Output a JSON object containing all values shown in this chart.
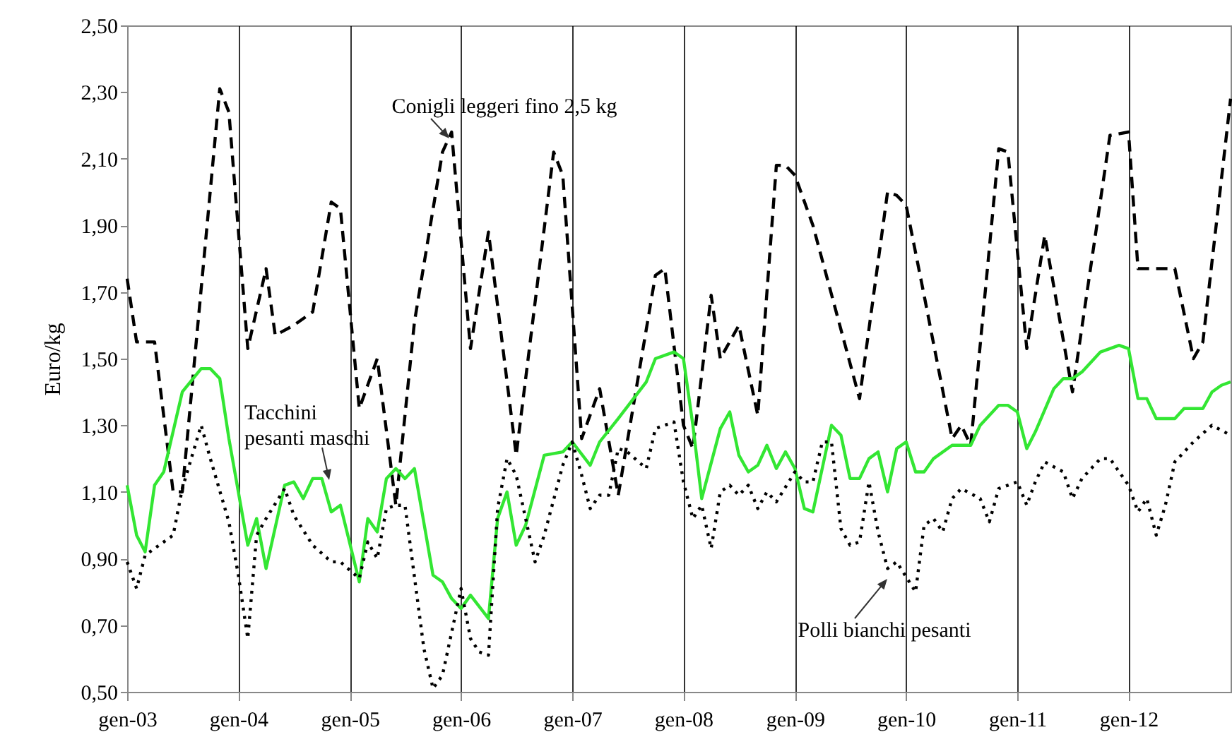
{
  "chart_data": {
    "type": "line",
    "ylabel": "Euro/kg",
    "xlim": [
      "2003-01",
      "2012-12"
    ],
    "xticks": [
      {
        "value": "2003-01",
        "label": "gen-03"
      },
      {
        "value": "2004-01",
        "label": "gen-04"
      },
      {
        "value": "2005-01",
        "label": "gen-05"
      },
      {
        "value": "2006-01",
        "label": "gen-06"
      },
      {
        "value": "2007-01",
        "label": "gen-07"
      },
      {
        "value": "2008-01",
        "label": "gen-08"
      },
      {
        "value": "2009-01",
        "label": "gen-09"
      },
      {
        "value": "2010-01",
        "label": "gen-10"
      },
      {
        "value": "2011-01",
        "label": "gen-11"
      },
      {
        "value": "2012-01",
        "label": "gen-12"
      }
    ],
    "ylim": [
      0.5,
      2.5
    ],
    "yticks": [
      {
        "value": 0.5,
        "label": "0,50"
      },
      {
        "value": 0.7,
        "label": "0,70"
      },
      {
        "value": 0.9,
        "label": "0,90"
      },
      {
        "value": 1.1,
        "label": "1,10"
      },
      {
        "value": 1.3,
        "label": "1,30"
      },
      {
        "value": 1.5,
        "label": "1,50"
      },
      {
        "value": 1.7,
        "label": "1,70"
      },
      {
        "value": 1.9,
        "label": "1,90"
      },
      {
        "value": 2.1,
        "label": "2,10"
      },
      {
        "value": 2.3,
        "label": "2,30"
      },
      {
        "value": 2.5,
        "label": "2,50"
      }
    ],
    "grid": "x",
    "series": [
      {
        "name": "Conigli leggeri fino 2,5 kg",
        "color": "#000000",
        "line_style": "dashed",
        "x": [
          "2003-01",
          "2003-02",
          "2003-04",
          "2003-06",
          "2003-07",
          "2003-11",
          "2003-12",
          "2004-02",
          "2004-04",
          "2004-05",
          "2004-07",
          "2004-09",
          "2004-11",
          "2004-12",
          "2005-02",
          "2005-04",
          "2005-06",
          "2005-08",
          "2005-11",
          "2005-12",
          "2006-02",
          "2006-04",
          "2006-07",
          "2006-11",
          "2006-12",
          "2007-02",
          "2007-04",
          "2007-06",
          "2007-10",
          "2007-11",
          "2008-01",
          "2008-02",
          "2008-04",
          "2008-05",
          "2008-07",
          "2008-09",
          "2008-11",
          "2008-12",
          "2009-01",
          "2009-03",
          "2009-08",
          "2009-11",
          "2009-12",
          "2010-01",
          "2010-03",
          "2010-06",
          "2010-07",
          "2010-08",
          "2010-11",
          "2010-12",
          "2011-02",
          "2011-04",
          "2011-07",
          "2011-11",
          "2012-01",
          "2012-02",
          "2012-04",
          "2012-06",
          "2012-08",
          "2012-09",
          "2012-12"
        ],
        "values": [
          1.74,
          1.55,
          1.55,
          1.1,
          1.1,
          2.31,
          2.24,
          1.53,
          1.77,
          1.57,
          1.6,
          1.64,
          1.97,
          1.95,
          1.35,
          1.5,
          1.06,
          1.61,
          2.12,
          2.18,
          1.53,
          1.88,
          1.21,
          2.12,
          2.05,
          1.26,
          1.41,
          1.09,
          1.75,
          1.77,
          1.3,
          1.23,
          1.69,
          1.5,
          1.6,
          1.33,
          2.08,
          2.08,
          2.05,
          1.9,
          1.38,
          2.0,
          1.99,
          1.96,
          1.69,
          1.26,
          1.3,
          1.24,
          2.13,
          2.12,
          1.53,
          1.87,
          1.4,
          2.17,
          2.18,
          1.77,
          1.77,
          1.77,
          1.5,
          1.55,
          2.28
        ]
      },
      {
        "name": "Tacchini pesanti maschi",
        "color": "#33e633",
        "line_style": "solid",
        "x": [
          "2003-01",
          "2003-02",
          "2003-03",
          "2003-04",
          "2003-05",
          "2003-07",
          "2003-09",
          "2003-10",
          "2003-11",
          "2003-12",
          "2004-02",
          "2004-03",
          "2004-04",
          "2004-06",
          "2004-07",
          "2004-08",
          "2004-09",
          "2004-10",
          "2004-11",
          "2004-12",
          "2005-02",
          "2005-03",
          "2005-04",
          "2005-05",
          "2005-06",
          "2005-07",
          "2005-08",
          "2005-10",
          "2005-11",
          "2005-12",
          "2006-01",
          "2006-02",
          "2006-04",
          "2006-05",
          "2006-06",
          "2006-07",
          "2006-08",
          "2006-10",
          "2006-12",
          "2007-01",
          "2007-03",
          "2007-04",
          "2007-06",
          "2007-09",
          "2007-10",
          "2007-12",
          "2008-01",
          "2008-02",
          "2008-03",
          "2008-05",
          "2008-06",
          "2008-07",
          "2008-08",
          "2008-09",
          "2008-10",
          "2008-11",
          "2008-12",
          "2009-01",
          "2009-02",
          "2009-03",
          "2009-05",
          "2009-06",
          "2009-07",
          "2009-08",
          "2009-09",
          "2009-10",
          "2009-11",
          "2009-12",
          "2010-01",
          "2010-02",
          "2010-03",
          "2010-04",
          "2010-06",
          "2010-08",
          "2010-09",
          "2010-11",
          "2010-12",
          "2011-01",
          "2011-02",
          "2011-03",
          "2011-05",
          "2011-06",
          "2011-07",
          "2011-08",
          "2011-10",
          "2011-12",
          "2012-01",
          "2012-02",
          "2012-03",
          "2012-04",
          "2012-06",
          "2012-07",
          "2012-09",
          "2012-10",
          "2012-11",
          "2012-12"
        ],
        "values": [
          1.12,
          0.97,
          0.92,
          1.12,
          1.16,
          1.4,
          1.47,
          1.47,
          1.44,
          1.26,
          0.94,
          1.02,
          0.87,
          1.12,
          1.13,
          1.08,
          1.14,
          1.14,
          1.04,
          1.06,
          0.83,
          1.02,
          0.98,
          1.14,
          1.17,
          1.14,
          1.17,
          0.85,
          0.83,
          0.78,
          0.75,
          0.79,
          0.72,
          1.02,
          1.1,
          0.94,
          1.0,
          1.21,
          1.22,
          1.25,
          1.18,
          1.25,
          1.32,
          1.43,
          1.5,
          1.52,
          1.5,
          1.3,
          1.08,
          1.29,
          1.34,
          1.21,
          1.16,
          1.18,
          1.24,
          1.17,
          1.22,
          1.17,
          1.05,
          1.04,
          1.3,
          1.27,
          1.14,
          1.14,
          1.2,
          1.22,
          1.1,
          1.23,
          1.25,
          1.16,
          1.16,
          1.2,
          1.24,
          1.24,
          1.3,
          1.36,
          1.36,
          1.34,
          1.23,
          1.28,
          1.41,
          1.44,
          1.44,
          1.46,
          1.52,
          1.54,
          1.53,
          1.38,
          1.38,
          1.32,
          1.32,
          1.35,
          1.35,
          1.4,
          1.42,
          1.43
        ]
      },
      {
        "name": "Polli bianchi pesanti",
        "color": "#000000",
        "line_style": "dotted",
        "x": [
          "2003-01",
          "2003-02",
          "2003-03",
          "2003-06",
          "2003-07",
          "2003-09",
          "2003-10",
          "2003-12",
          "2004-01",
          "2004-02",
          "2004-03",
          "2004-04",
          "2004-06",
          "2004-07",
          "2004-09",
          "2004-11",
          "2004-12",
          "2005-02",
          "2005-03",
          "2005-04",
          "2005-05",
          "2005-06",
          "2005-07",
          "2005-09",
          "2005-10",
          "2005-11",
          "2006-01",
          "2006-02",
          "2006-03",
          "2006-04",
          "2006-05",
          "2006-06",
          "2006-07",
          "2006-09",
          "2006-10",
          "2006-12",
          "2007-01",
          "2007-02",
          "2007-03",
          "2007-04",
          "2007-05",
          "2007-06",
          "2007-07",
          "2007-09",
          "2007-10",
          "2007-12",
          "2008-01",
          "2008-02",
          "2008-03",
          "2008-04",
          "2008-05",
          "2008-06",
          "2008-07",
          "2008-08",
          "2008-09",
          "2008-10",
          "2008-11",
          "2009-01",
          "2009-02",
          "2009-03",
          "2009-04",
          "2009-05",
          "2009-06",
          "2009-07",
          "2009-08",
          "2009-09",
          "2009-10",
          "2009-11",
          "2009-12",
          "2010-02",
          "2010-03",
          "2010-04",
          "2010-05",
          "2010-06",
          "2010-07",
          "2010-09",
          "2010-10",
          "2010-11",
          "2011-01",
          "2011-02",
          "2011-03",
          "2011-04",
          "2011-06",
          "2011-07",
          "2011-08",
          "2011-10",
          "2011-11",
          "2012-01",
          "2012-02",
          "2012-03",
          "2012-04",
          "2012-05",
          "2012-06",
          "2012-08",
          "2012-10",
          "2012-12"
        ],
        "values": [
          0.89,
          0.81,
          0.91,
          0.97,
          1.11,
          1.3,
          1.2,
          1.01,
          0.85,
          0.66,
          0.97,
          1.02,
          1.11,
          1.03,
          0.94,
          0.89,
          0.89,
          0.84,
          0.95,
          0.9,
          1.05,
          1.06,
          1.06,
          0.63,
          0.51,
          0.55,
          0.81,
          0.66,
          0.62,
          0.61,
          1.05,
          1.2,
          1.15,
          0.89,
          0.97,
          1.18,
          1.25,
          1.15,
          1.05,
          1.09,
          1.09,
          1.23,
          1.22,
          1.17,
          1.29,
          1.31,
          1.13,
          1.02,
          1.06,
          0.93,
          1.1,
          1.12,
          1.09,
          1.12,
          1.05,
          1.1,
          1.07,
          1.16,
          1.13,
          1.13,
          1.25,
          1.25,
          0.99,
          0.94,
          0.95,
          1.13,
          0.98,
          0.87,
          0.89,
          0.8,
          1.0,
          1.02,
          0.98,
          1.08,
          1.11,
          1.08,
          1.01,
          1.11,
          1.13,
          1.06,
          1.13,
          1.19,
          1.16,
          1.08,
          1.14,
          1.2,
          1.2,
          1.12,
          1.04,
          1.08,
          0.97,
          1.06,
          1.19,
          1.25,
          1.3,
          1.27
        ]
      }
    ]
  }
}
